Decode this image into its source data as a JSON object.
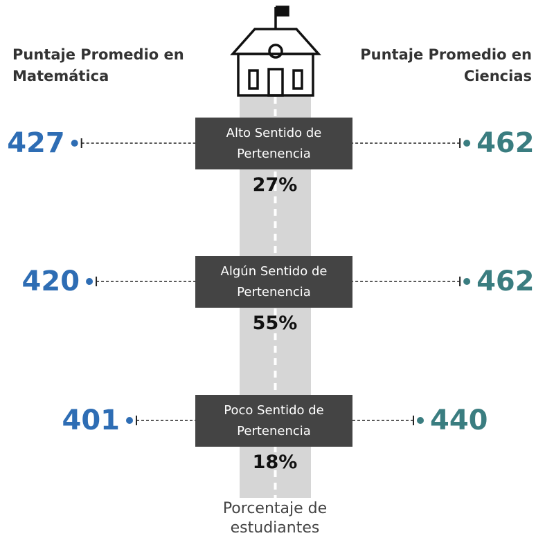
{
  "chart_data": {
    "type": "dot",
    "categories": [
      "Alto Sentido de Pertenencia",
      "Algún Sentido de Pertenencia",
      "Poco Sentido de Pertenencia"
    ],
    "series": [
      {
        "name": "Puntaje Promedio en Matemática",
        "color": "#2e6db4",
        "values": [
          427,
          420,
          401
        ]
      },
      {
        "name": "Puntaje Promedio en Ciencias",
        "color": "#3a7d80",
        "values": [
          462,
          462,
          440
        ]
      }
    ],
    "share": {
      "name": "Porcentaje de estudiantes",
      "values": [
        27,
        55,
        18
      ],
      "value_labels": [
        "27%",
        "55%",
        "18%"
      ]
    }
  }
}
